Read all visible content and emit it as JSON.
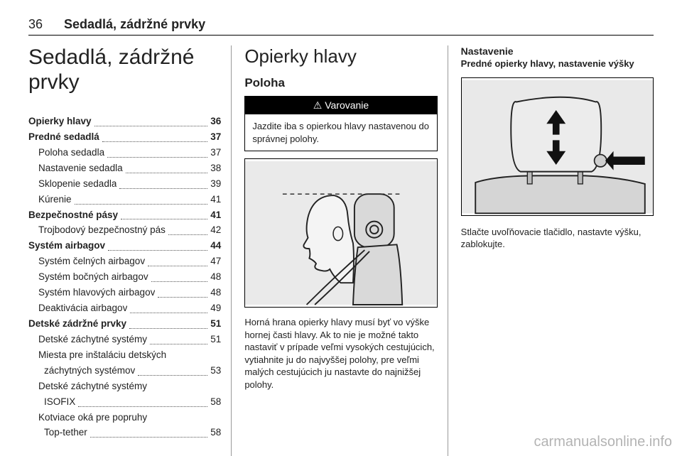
{
  "header": {
    "page_number": "36",
    "section": "Sedadlá, zádržné prvky"
  },
  "col1": {
    "chapter_title": "Sedadlá, zádržné prvky",
    "toc": [
      {
        "label": "Opierky hlavy",
        "page": "36",
        "bold": true
      },
      {
        "label": "Predné sedadlá",
        "page": "37",
        "bold": true
      },
      {
        "label": "Poloha sedadla",
        "page": "37",
        "indent": true
      },
      {
        "label": "Nastavenie sedadla",
        "page": "38",
        "indent": true
      },
      {
        "label": "Sklopenie sedadla",
        "page": "39",
        "indent": true
      },
      {
        "label": "Kúrenie",
        "page": "41",
        "indent": true
      },
      {
        "label": "Bezpečnostné pásy",
        "page": "41",
        "bold": true
      },
      {
        "label": "Trojbodový bezpečnostný pás",
        "page": "42",
        "indent": true
      },
      {
        "label": "Systém airbagov",
        "page": "44",
        "bold": true
      },
      {
        "label": "Systém čelných airbagov",
        "page": "47",
        "indent": true
      },
      {
        "label": "Systém bočných airbagov",
        "page": "48",
        "indent": true
      },
      {
        "label": "Systém hlavových airbagov",
        "page": "48",
        "indent": true
      },
      {
        "label": "Deaktivácia airbagov",
        "page": "49",
        "indent": true
      },
      {
        "label": "Detské zádržné prvky",
        "page": "51",
        "bold": true
      },
      {
        "label": "Detské záchytné systémy",
        "page": "51",
        "indent": true
      },
      {
        "label": "Miesta pre inštaláciu detských",
        "page": "",
        "indent": true,
        "multiline": true
      },
      {
        "label": "záchytných systémov",
        "page": "53",
        "indent": true,
        "cont": true
      },
      {
        "label": "Detské záchytné systémy",
        "page": "",
        "indent": true,
        "multiline": true
      },
      {
        "label": "ISOFIX",
        "page": "58",
        "indent": true,
        "cont": true
      },
      {
        "label": "Kotviace oká pre popruhy",
        "page": "",
        "indent": true,
        "multiline": true
      },
      {
        "label": "Top-tether",
        "page": "58",
        "indent": true,
        "cont": true
      }
    ]
  },
  "col2": {
    "title": "Opierky hlavy",
    "subhead": "Poloha",
    "warning_label": "Varovanie",
    "warning_symbol": "⚠",
    "warning_text": "Jazdite iba s opierkou hlavy nastavenou do správnej polohy.",
    "caption": "Horná hrana opierky hlavy musí byť vo výške hornej časti hlavy. Ak to nie je možné takto nastaviť v prípade veľmi vysokých cestujúcich, vytiahnite ju do najvyššej polohy, pre veľmi malých cestujúcich ju nastavte do najnižšej polohy.",
    "illustration_bg": "#e9e9e9",
    "illustration_stroke": "#222222"
  },
  "col3": {
    "title": "Nastavenie",
    "subtitle": "Predné opierky hlavy, nastavenie výšky",
    "caption": "Stlačte uvoľňovacie tlačidlo, nastavte výšku, zablokujte.",
    "illustration_bg": "#e9e9e9",
    "illustration_stroke": "#222222"
  },
  "watermark": "carmanualsonline.info"
}
